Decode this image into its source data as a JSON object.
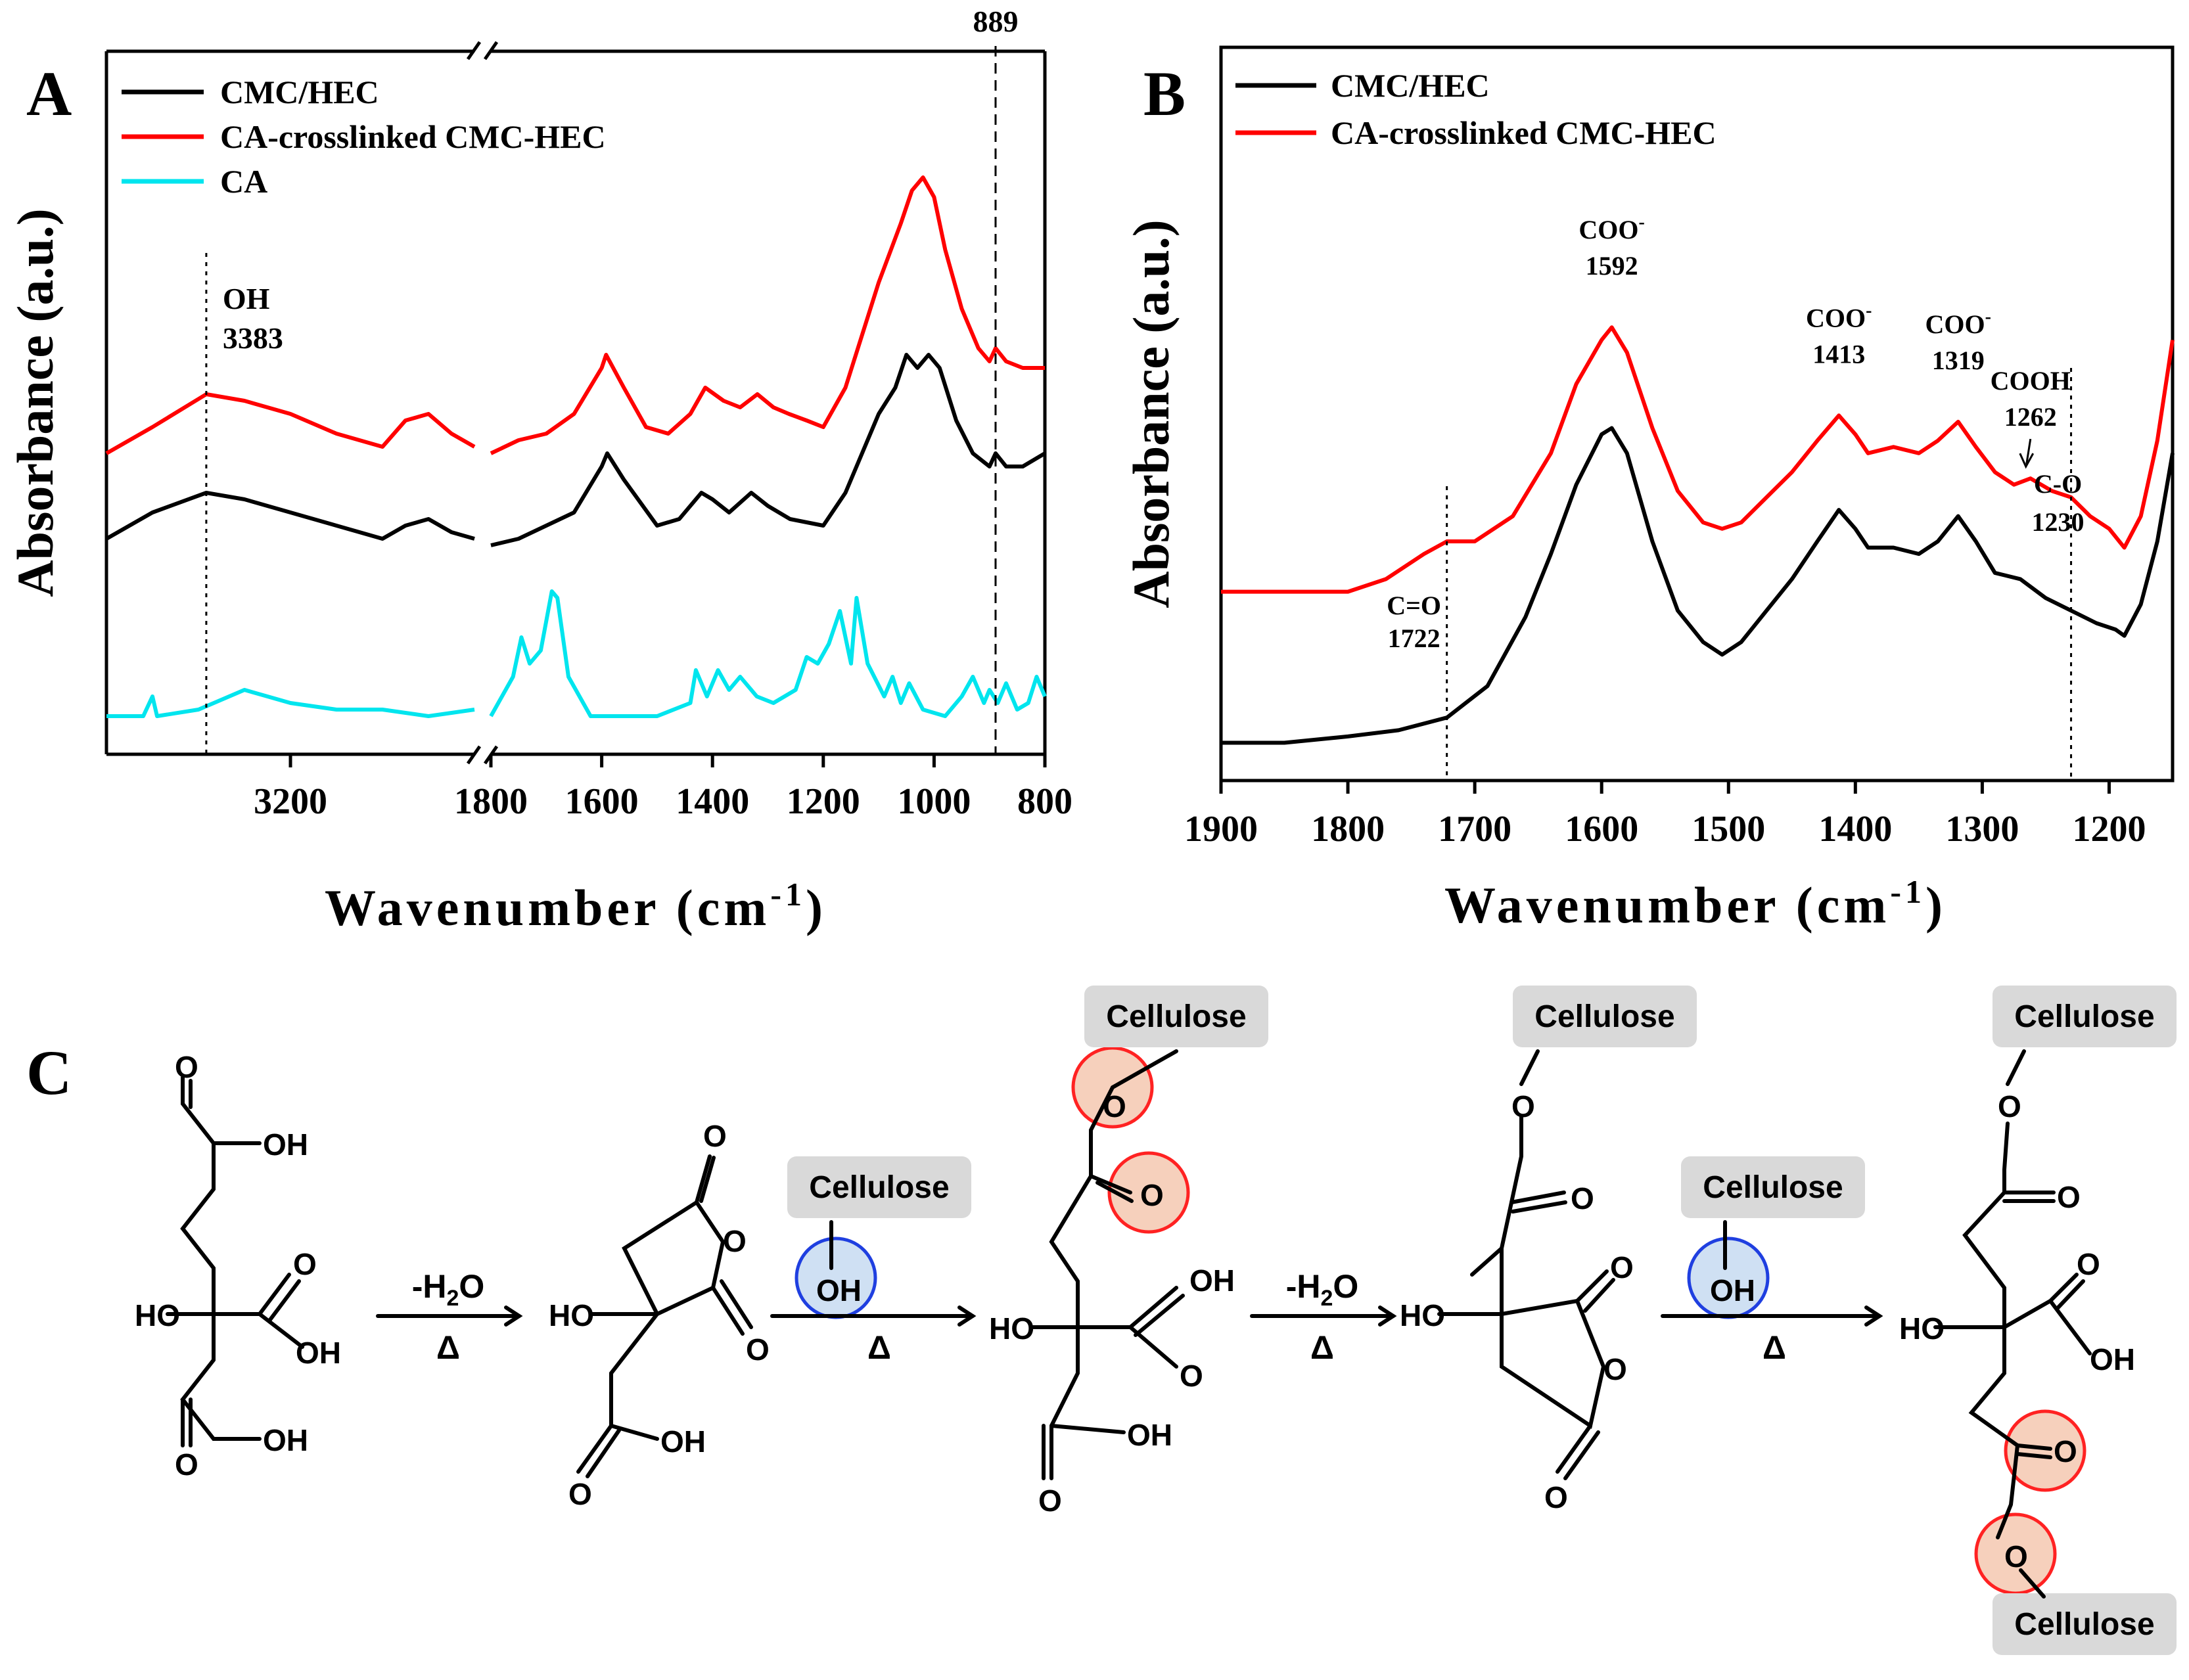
{
  "colors": {
    "cmc_hec": "#000000",
    "ca_crosslinked": "#ff0000",
    "ca": "#00e5ee",
    "cellulose_box": "#d9d9d9",
    "ester_circle_fill": "#f6d0bc",
    "ester_circle_stroke": "#ff2222",
    "oh_circle_fill": "#cfe0f3",
    "oh_circle_stroke": "#1f3fe0"
  },
  "panel_labels": {
    "a": "A",
    "b": "B",
    "c": "C"
  },
  "chart_data": [
    {
      "id": "A",
      "type": "line",
      "title": "",
      "xlabel": "Wavenumber (cm-1)",
      "xlabel_main": "Wavenumber (cm",
      "xlabel_sup": "-1",
      "xlabel_end": ")",
      "ylabel": "Absorbance (a.u.)",
      "x_reversed": true,
      "broken_axis": true,
      "xlim_left_segment": [
        3600,
        2800
      ],
      "xlim_right_segment": [
        1800,
        800
      ],
      "ylim": [
        0,
        1
      ],
      "x_ticks": [
        "3200",
        "1800",
        "1600",
        "1400",
        "1200",
        "1000",
        "800"
      ],
      "x_tick_values": [
        3200,
        1800,
        1600,
        1400,
        1200,
        1000,
        800
      ],
      "legend": [
        "CMC/HEC",
        "CA-crosslinked CMC-HEC",
        "CA"
      ],
      "annotations": [
        {
          "label": "OH",
          "value": "3383",
          "x": 3383
        },
        {
          "label": "889",
          "x": 889
        }
      ],
      "series": [
        {
          "name": "CMC/HEC",
          "color_key": "cmc_hec",
          "points": [
            [
              3600,
              0.29
            ],
            [
              3500,
              0.33
            ],
            [
              3383,
              0.36
            ],
            [
              3300,
              0.35
            ],
            [
              3200,
              0.33
            ],
            [
              3100,
              0.31
            ],
            [
              3000,
              0.29
            ],
            [
              2950,
              0.31
            ],
            [
              2900,
              0.32
            ],
            [
              2850,
              0.3
            ],
            [
              2800,
              0.29
            ],
            [
              1800,
              0.28
            ],
            [
              1750,
              0.29
            ],
            [
              1700,
              0.31
            ],
            [
              1650,
              0.33
            ],
            [
              1600,
              0.4
            ],
            [
              1590,
              0.42
            ],
            [
              1560,
              0.38
            ],
            [
              1500,
              0.31
            ],
            [
              1460,
              0.32
            ],
            [
              1420,
              0.36
            ],
            [
              1400,
              0.35
            ],
            [
              1370,
              0.33
            ],
            [
              1330,
              0.36
            ],
            [
              1300,
              0.34
            ],
            [
              1260,
              0.32
            ],
            [
              1200,
              0.31
            ],
            [
              1160,
              0.36
            ],
            [
              1100,
              0.48
            ],
            [
              1070,
              0.52
            ],
            [
              1050,
              0.57
            ],
            [
              1030,
              0.55
            ],
            [
              1010,
              0.57
            ],
            [
              990,
              0.55
            ],
            [
              960,
              0.47
            ],
            [
              930,
              0.42
            ],
            [
              900,
              0.4
            ],
            [
              889,
              0.42
            ],
            [
              870,
              0.4
            ],
            [
              840,
              0.4
            ],
            [
              800,
              0.42
            ]
          ]
        },
        {
          "name": "CA-crosslinked CMC-HEC",
          "color_key": "ca_crosslinked",
          "points": [
            [
              3600,
              0.42
            ],
            [
              3500,
              0.46
            ],
            [
              3383,
              0.51
            ],
            [
              3300,
              0.5
            ],
            [
              3200,
              0.48
            ],
            [
              3100,
              0.45
            ],
            [
              3000,
              0.43
            ],
            [
              2950,
              0.47
            ],
            [
              2900,
              0.48
            ],
            [
              2850,
              0.45
            ],
            [
              2800,
              0.43
            ],
            [
              1800,
              0.42
            ],
            [
              1750,
              0.44
            ],
            [
              1700,
              0.45
            ],
            [
              1650,
              0.48
            ],
            [
              1600,
              0.55
            ],
            [
              1592,
              0.57
            ],
            [
              1560,
              0.52
            ],
            [
              1520,
              0.46
            ],
            [
              1480,
              0.45
            ],
            [
              1440,
              0.48
            ],
            [
              1413,
              0.52
            ],
            [
              1380,
              0.5
            ],
            [
              1350,
              0.49
            ],
            [
              1319,
              0.51
            ],
            [
              1290,
              0.49
            ],
            [
              1262,
              0.48
            ],
            [
              1230,
              0.47
            ],
            [
              1200,
              0.46
            ],
            [
              1160,
              0.52
            ],
            [
              1100,
              0.68
            ],
            [
              1060,
              0.77
            ],
            [
              1040,
              0.82
            ],
            [
              1020,
              0.84
            ],
            [
              1000,
              0.81
            ],
            [
              980,
              0.73
            ],
            [
              950,
              0.64
            ],
            [
              920,
              0.58
            ],
            [
              900,
              0.56
            ],
            [
              889,
              0.58
            ],
            [
              870,
              0.56
            ],
            [
              840,
              0.55
            ],
            [
              800,
              0.55
            ]
          ]
        },
        {
          "name": "CA",
          "color_key": "ca",
          "points": [
            [
              3600,
              0.02
            ],
            [
              3520,
              0.02
            ],
            [
              3500,
              0.05
            ],
            [
              3490,
              0.02
            ],
            [
              3400,
              0.03
            ],
            [
              3300,
              0.06
            ],
            [
              3250,
              0.05
            ],
            [
              3200,
              0.04
            ],
            [
              3100,
              0.03
            ],
            [
              3000,
              0.03
            ],
            [
              2900,
              0.02
            ],
            [
              2800,
              0.03
            ],
            [
              1800,
              0.02
            ],
            [
              1760,
              0.08
            ],
            [
              1745,
              0.14
            ],
            [
              1730,
              0.1
            ],
            [
              1710,
              0.12
            ],
            [
              1690,
              0.21
            ],
            [
              1680,
              0.2
            ],
            [
              1660,
              0.08
            ],
            [
              1620,
              0.02
            ],
            [
              1500,
              0.02
            ],
            [
              1440,
              0.04
            ],
            [
              1430,
              0.09
            ],
            [
              1410,
              0.05
            ],
            [
              1390,
              0.09
            ],
            [
              1370,
              0.06
            ],
            [
              1350,
              0.08
            ],
            [
              1320,
              0.05
            ],
            [
              1290,
              0.04
            ],
            [
              1250,
              0.06
            ],
            [
              1230,
              0.11
            ],
            [
              1210,
              0.1
            ],
            [
              1190,
              0.13
            ],
            [
              1170,
              0.18
            ],
            [
              1150,
              0.1
            ],
            [
              1140,
              0.2
            ],
            [
              1120,
              0.1
            ],
            [
              1090,
              0.05
            ],
            [
              1075,
              0.08
            ],
            [
              1060,
              0.04
            ],
            [
              1045,
              0.07
            ],
            [
              1020,
              0.03
            ],
            [
              980,
              0.02
            ],
            [
              950,
              0.05
            ],
            [
              930,
              0.08
            ],
            [
              910,
              0.04
            ],
            [
              900,
              0.06
            ],
            [
              885,
              0.04
            ],
            [
              870,
              0.07
            ],
            [
              850,
              0.03
            ],
            [
              830,
              0.04
            ],
            [
              815,
              0.08
            ],
            [
              800,
              0.05
            ]
          ]
        }
      ]
    },
    {
      "id": "B",
      "type": "line",
      "title": "",
      "xlabel": "Wavenumber (cm-1)",
      "xlabel_main": "Wavenumber (cm",
      "xlabel_sup": "-1",
      "xlabel_end": ")",
      "ylabel": "Absorbance (a.u.)",
      "x_reversed": true,
      "xlim": [
        1900,
        1150
      ],
      "ylim": [
        0,
        1
      ],
      "x_ticks": [
        "1900",
        "1800",
        "1700",
        "1600",
        "1500",
        "1400",
        "1300",
        "1200"
      ],
      "x_tick_values": [
        1900,
        1800,
        1700,
        1600,
        1500,
        1400,
        1300,
        1200
      ],
      "legend": [
        "CMC/HEC",
        "CA-crosslinked CMC-HEC"
      ],
      "annotations": [
        {
          "label": "COO",
          "sup": "-",
          "value": "1592",
          "x": 1592
        },
        {
          "label": "COO",
          "sup": "-",
          "value": "1413",
          "x": 1413
        },
        {
          "label": "COO",
          "sup": "-",
          "value": "1319",
          "x": 1319
        },
        {
          "label": "COOH",
          "value": "1262",
          "x": 1262
        },
        {
          "label": "C=O",
          "value": "1722",
          "x": 1722
        },
        {
          "label": "C-O",
          "value": "1230",
          "x": 1230
        }
      ],
      "series": [
        {
          "name": "CMC/HEC",
          "color_key": "cmc_hec",
          "points": [
            [
              1900,
              0.06
            ],
            [
              1850,
              0.06
            ],
            [
              1800,
              0.07
            ],
            [
              1760,
              0.08
            ],
            [
              1722,
              0.1
            ],
            [
              1690,
              0.15
            ],
            [
              1660,
              0.26
            ],
            [
              1640,
              0.36
            ],
            [
              1620,
              0.47
            ],
            [
              1600,
              0.55
            ],
            [
              1592,
              0.56
            ],
            [
              1580,
              0.52
            ],
            [
              1560,
              0.38
            ],
            [
              1540,
              0.27
            ],
            [
              1520,
              0.22
            ],
            [
              1505,
              0.2
            ],
            [
              1490,
              0.22
            ],
            [
              1470,
              0.27
            ],
            [
              1450,
              0.32
            ],
            [
              1430,
              0.38
            ],
            [
              1413,
              0.43
            ],
            [
              1400,
              0.4
            ],
            [
              1390,
              0.37
            ],
            [
              1370,
              0.37
            ],
            [
              1350,
              0.36
            ],
            [
              1335,
              0.38
            ],
            [
              1319,
              0.42
            ],
            [
              1305,
              0.38
            ],
            [
              1290,
              0.33
            ],
            [
              1270,
              0.32
            ],
            [
              1250,
              0.29
            ],
            [
              1230,
              0.27
            ],
            [
              1210,
              0.25
            ],
            [
              1195,
              0.24
            ],
            [
              1188,
              0.23
            ],
            [
              1175,
              0.28
            ],
            [
              1162,
              0.38
            ],
            [
              1150,
              0.52
            ]
          ]
        },
        {
          "name": "CA-crosslinked CMC-HEC",
          "color_key": "ca_crosslinked",
          "points": [
            [
              1900,
              0.3
            ],
            [
              1850,
              0.3
            ],
            [
              1800,
              0.3
            ],
            [
              1770,
              0.32
            ],
            [
              1740,
              0.36
            ],
            [
              1722,
              0.38
            ],
            [
              1700,
              0.38
            ],
            [
              1670,
              0.42
            ],
            [
              1640,
              0.52
            ],
            [
              1620,
              0.63
            ],
            [
              1600,
              0.7
            ],
            [
              1592,
              0.72
            ],
            [
              1580,
              0.68
            ],
            [
              1560,
              0.56
            ],
            [
              1540,
              0.46
            ],
            [
              1520,
              0.41
            ],
            [
              1505,
              0.4
            ],
            [
              1490,
              0.41
            ],
            [
              1470,
              0.45
            ],
            [
              1450,
              0.49
            ],
            [
              1430,
              0.54
            ],
            [
              1413,
              0.58
            ],
            [
              1400,
              0.55
            ],
            [
              1390,
              0.52
            ],
            [
              1370,
              0.53
            ],
            [
              1350,
              0.52
            ],
            [
              1335,
              0.54
            ],
            [
              1319,
              0.57
            ],
            [
              1305,
              0.53
            ],
            [
              1290,
              0.49
            ],
            [
              1275,
              0.47
            ],
            [
              1262,
              0.48
            ],
            [
              1245,
              0.46
            ],
            [
              1230,
              0.45
            ],
            [
              1215,
              0.42
            ],
            [
              1200,
              0.4
            ],
            [
              1188,
              0.37
            ],
            [
              1175,
              0.42
            ],
            [
              1162,
              0.54
            ],
            [
              1150,
              0.7
            ]
          ]
        }
      ]
    }
  ],
  "scheme": {
    "cellulose": "Cellulose",
    "oh": "OH",
    "o": "O",
    "ho": "HO",
    "water_loss": "-H",
    "water_sub": "2",
    "water_end": "O",
    "heat": "Δ"
  }
}
